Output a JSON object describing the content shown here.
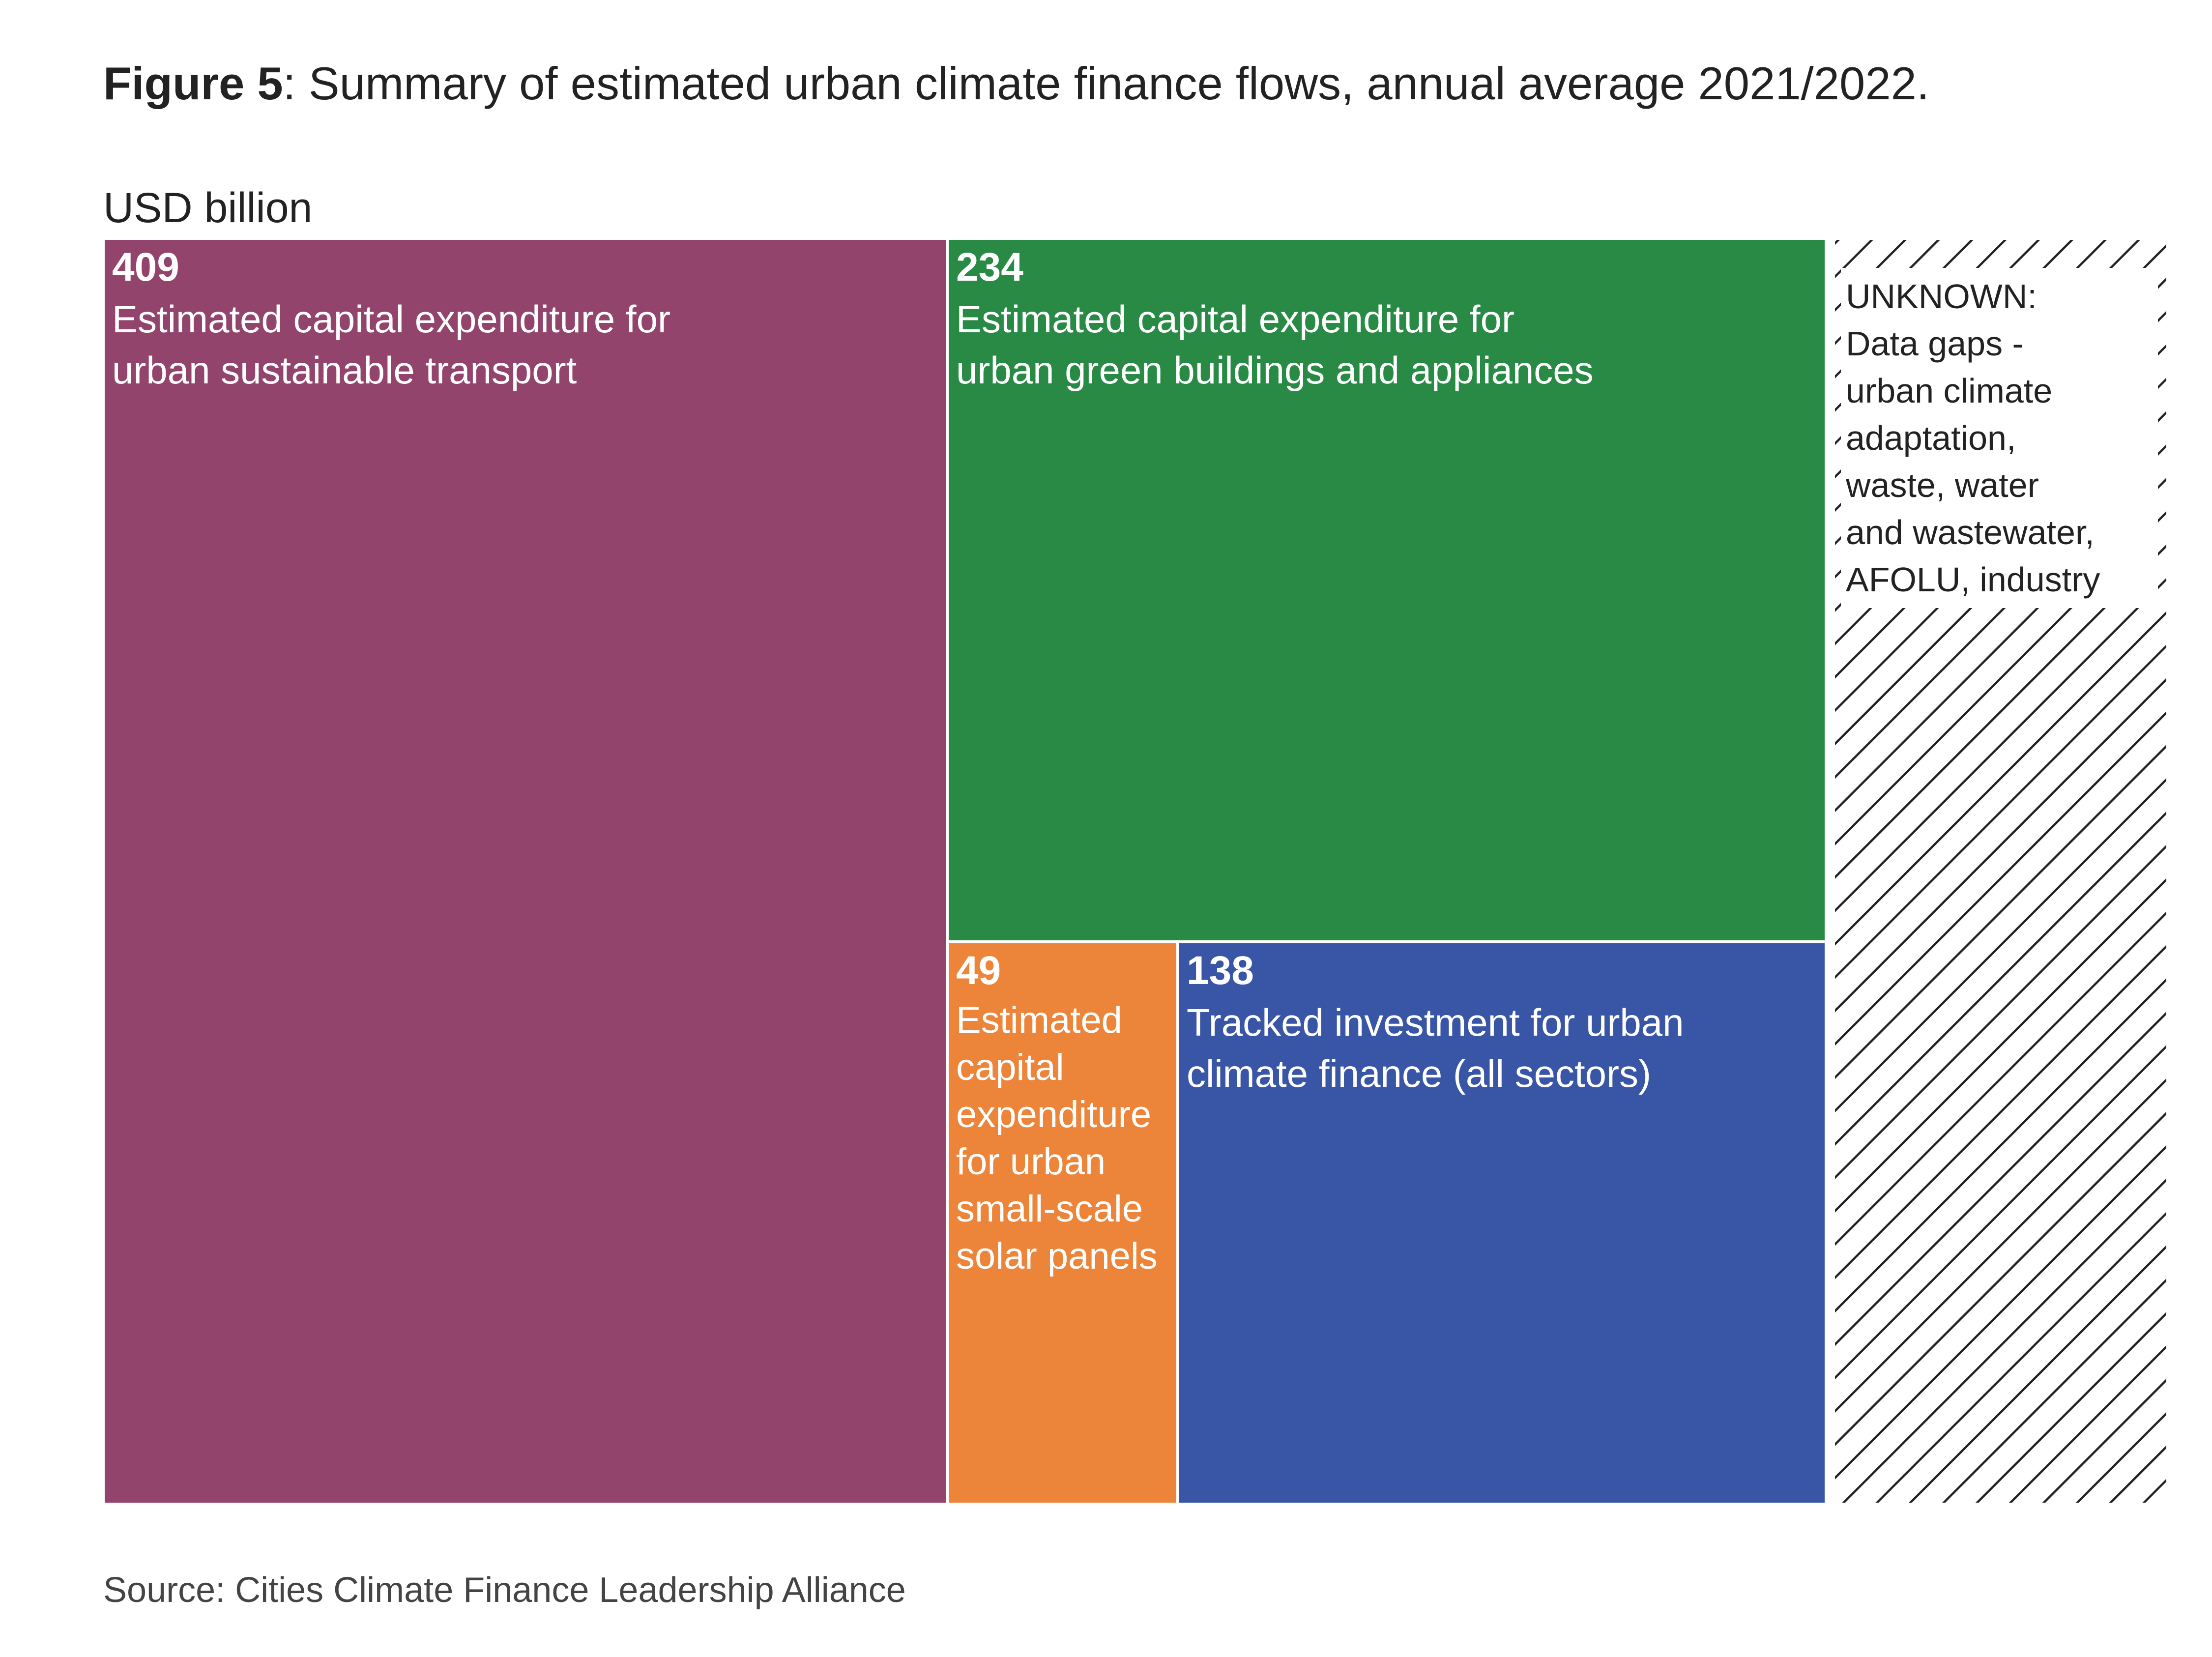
{
  "figure": {
    "number": "Figure 5",
    "title": ": Summary of estimated urban climate finance flows, annual average 2021/2022.",
    "unit": "USD billion",
    "source": "Source: Cities Climate Finance Leadership Alliance"
  },
  "chart_data": {
    "type": "treemap",
    "unit": "USD billion",
    "items": [
      {
        "value": 409,
        "label": "Estimated capital expenditure for\nurban sustainable transport",
        "color": "#93446d"
      },
      {
        "value": 234,
        "label": "Estimated capital expenditure for\nurban green buildings and appliances",
        "color": "#288a45"
      },
      {
        "value": 49,
        "label": "Estimated\ncapital\nexpenditure\nfor urban\nsmall-scale\nsolar panels",
        "color": "#ec843a"
      },
      {
        "value": 138,
        "label": "Tracked investment for urban\nclimate finance (all sectors)",
        "color": "#3955a5"
      }
    ],
    "unknown": {
      "title": "UNKNOWN:",
      "label": "Data gaps -\nurban climate\nadaptation,\nwaste, water\nand wastewater,\nAFOLU, industry",
      "pattern": "diagonal-hatch",
      "color": "#222222"
    }
  }
}
